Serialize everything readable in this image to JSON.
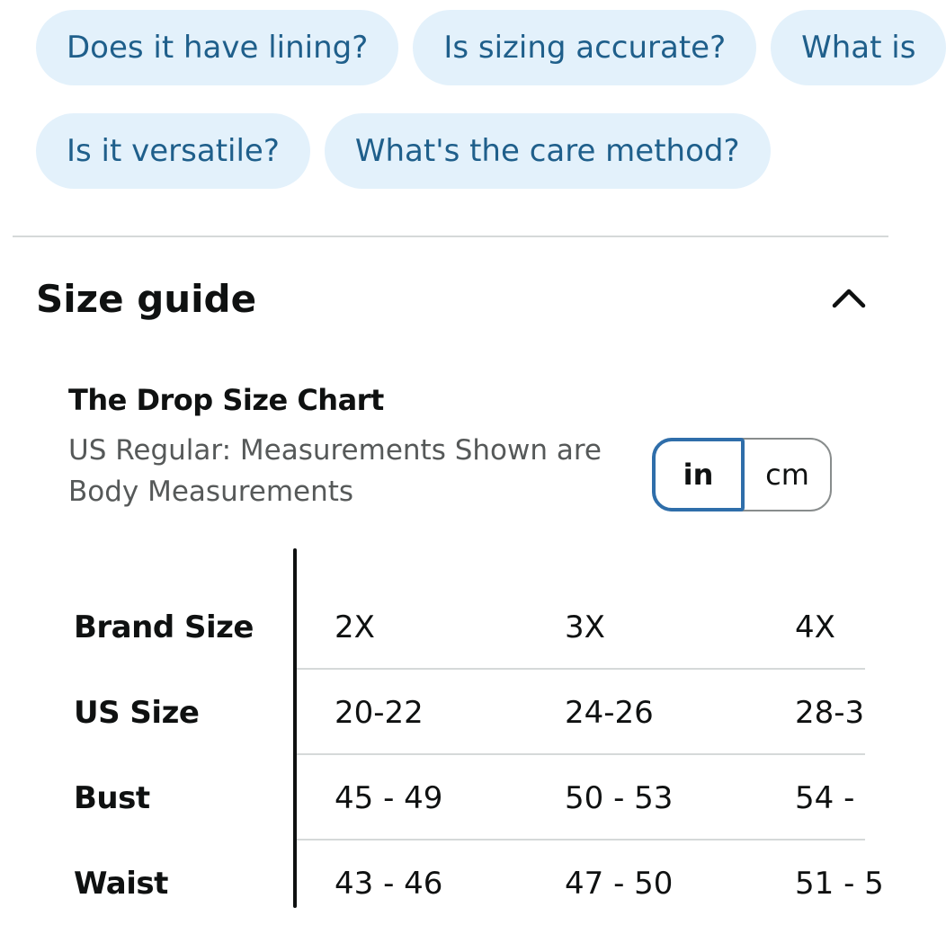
{
  "questions": {
    "row1": [
      "Does it have lining?",
      "Is sizing accurate?",
      "What is"
    ],
    "row2": [
      "Is it versatile?",
      "What's the care method?"
    ]
  },
  "size_guide": {
    "title": "Size guide",
    "collapse_icon": "chevron-up-icon",
    "chart_title": "The Drop Size Chart",
    "chart_subtitle_line1": "US Regular: Measurements Shown are",
    "chart_subtitle_line2": "Body Measurements",
    "units": {
      "in_label": "in",
      "cm_label": "cm",
      "selected": "in",
      "active_color": "#2f6eaa"
    },
    "table": {
      "rows": [
        {
          "label": "Brand Size",
          "values": [
            "2X",
            "3X",
            "4X"
          ]
        },
        {
          "label": "US Size",
          "values": [
            "20-22",
            "24-26",
            "28-3"
          ]
        },
        {
          "label": "Bust",
          "values": [
            "45 - 49",
            "50 - 53",
            "54 -"
          ]
        },
        {
          "label": "Waist",
          "values": [
            "43 - 46",
            "47 - 50",
            "51 - 5"
          ]
        }
      ]
    }
  },
  "colors": {
    "chip_bg": "#e3f1fb",
    "chip_text": "#1f5f8b"
  }
}
